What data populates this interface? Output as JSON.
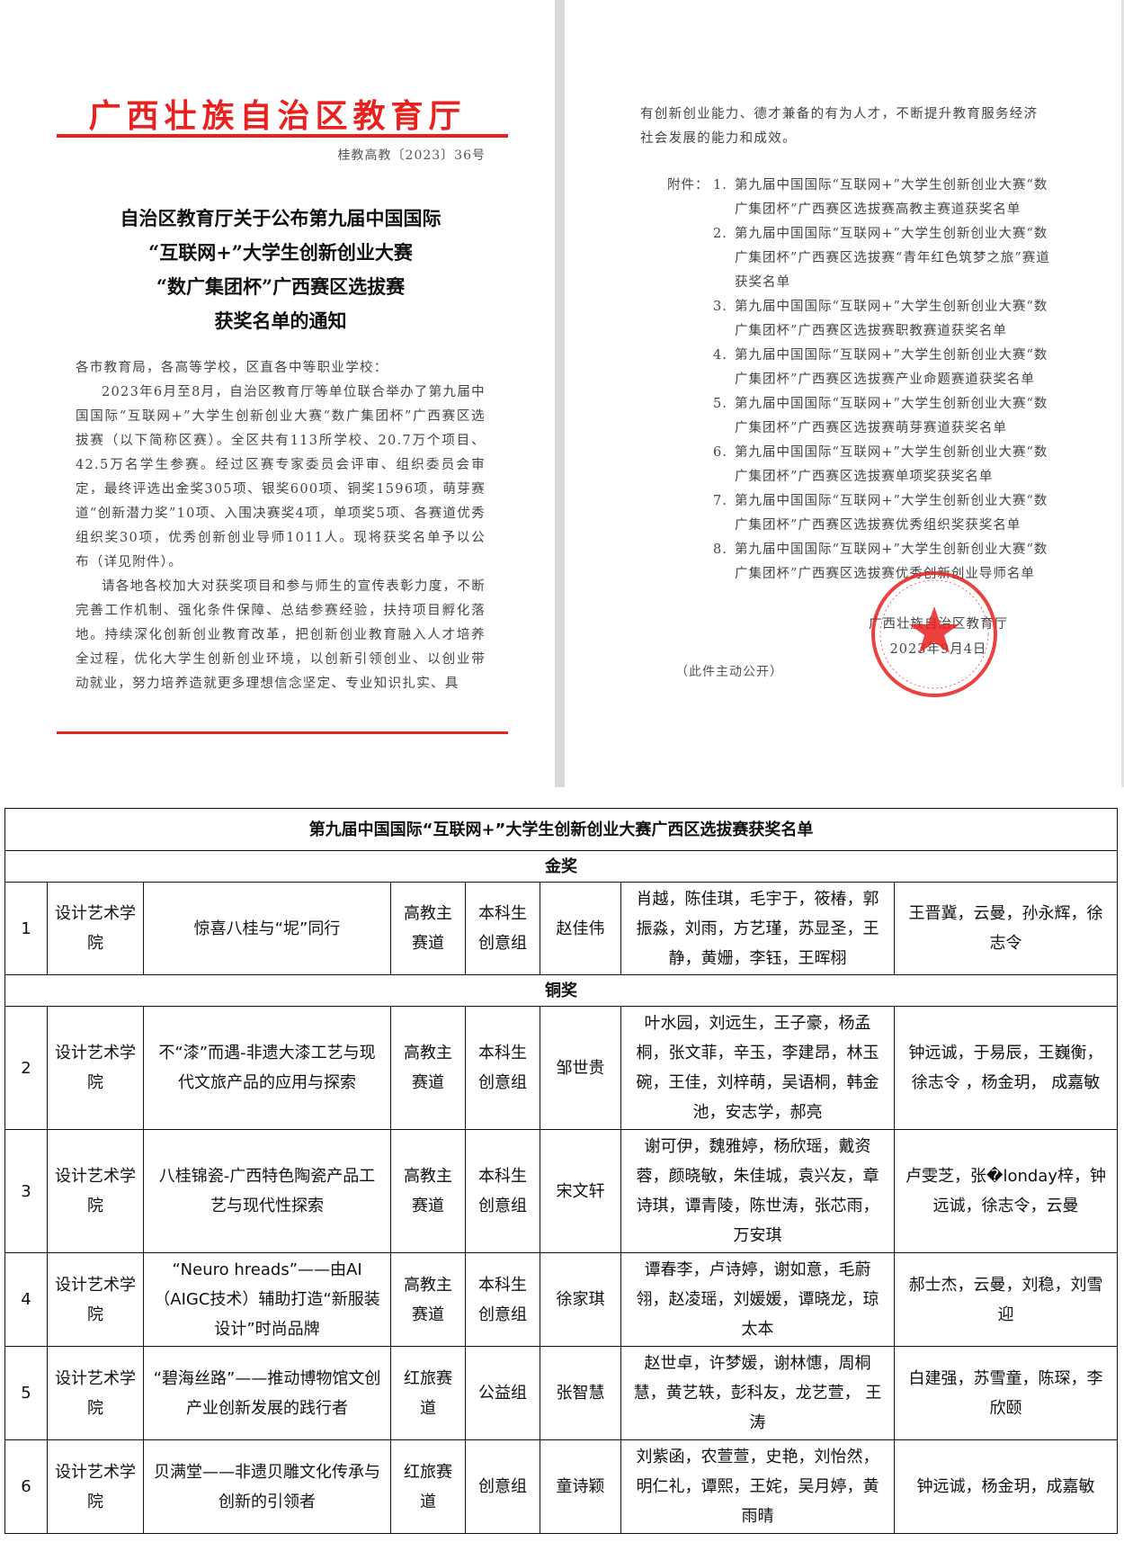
{
  "notice": {
    "issuer": "广西壮族自治区教育厅",
    "doc_number": "桂教高教〔2023〕36号",
    "title_lines": [
      "自治区教育厅关于公布第九届中国国际",
      "“互联网+”大学生创新创业大赛",
      "“数广集团杯”广西赛区选拔赛",
      "获奖名单的通知"
    ],
    "salutation": "各市教育局，各高等学校，区直各中等职业学校：",
    "paragraph1": "2023年6月至8月，自治区教育厅等单位联合举办了第九届中国国际“互联网+”大学生创新创业大赛“数广集团杯”广西赛区选拔赛（以下简称区赛）。全区共有113所学校、20.7万个项目、42.5万名学生参赛。经过区赛专家委员会评审、组织委员会审定，最终评选出金奖305项、银奖600项、铜奖1596项，萌芽赛道“创新潜力奖”10项、入围决赛奖4项，单项奖5项、各赛道优秀组织奖30项，优秀创新创业导师1011人。现将获奖名单予以公布（详见附件）。",
    "paragraph2": "请各地各校加大对获奖项目和参与师生的宣传表彰力度，不断完善工作机制、强化条件保障、总结参赛经验，扶持项目孵化落地。持续深化创新创业教育改革，把创新创业教育融入人才培养全过程，优化大学生创新创业环境，以创新引领创业、以创业带动就业，努力培养造就更多理想信念坚定、专业知识扎实、具",
    "paragraph2_cont": "有创新创业能力、德才兼备的有为人才，不断提升教育服务经济社会发展的能力和成效。",
    "attachments_label": "附件：",
    "attachments": [
      {
        "num": "1.",
        "text": "第九届中国国际“互联网+”大学生创新创业大赛“数广集团杯”广西赛区选拔赛高教主赛道获奖名单"
      },
      {
        "num": "2.",
        "text": "第九届中国国际“互联网+”大学生创新创业大赛“数广集团杯”广西赛区选拔赛“青年红色筑梦之旅”赛道获奖名单"
      },
      {
        "num": "3.",
        "text": "第九届中国国际“互联网+”大学生创新创业大赛“数广集团杯”广西赛区选拔赛职教赛道获奖名单"
      },
      {
        "num": "4.",
        "text": "第九届中国国际“互联网+”大学生创新创业大赛“数广集团杯”广西赛区选拔赛产业命题赛道获奖名单"
      },
      {
        "num": "5.",
        "text": "第九届中国国际“互联网+”大学生创新创业大赛“数广集团杯”广西赛区选拔赛萌芽赛道获奖名单"
      },
      {
        "num": "6.",
        "text": "第九届中国国际“互联网+”大学生创新创业大赛“数广集团杯”广西赛区选拔赛单项奖获奖名单"
      },
      {
        "num": "7.",
        "text": "第九届中国国际“互联网+”大学生创新创业大赛“数广集团杯”广西赛区选拔赛优秀组织奖获奖名单"
      },
      {
        "num": "8.",
        "text": "第九届中国国际“互联网+”大学生创新创业大赛“数广集团杯”广西赛区选拔赛优秀创新创业导师名单"
      }
    ],
    "signature": "广西壮族自治区教育厅",
    "date": "2023年9月4日",
    "disclosure": "（此件主动公开）",
    "seal_text": "广西壮族自治区教育厅",
    "accent_color": "#e8201e"
  },
  "table": {
    "title": "第九届中国国际“互联网+”大学生创新创业大赛广西区选拔赛获奖名单",
    "gold_label": "金奖",
    "bronze_label": "铜奖",
    "gold_rows": [
      {
        "no": "1",
        "college": "设计艺术学院",
        "project": "惊喜八桂与“坭”同行",
        "track": "高教主赛道",
        "group": "本科生创意组",
        "leader": "赵佳伟",
        "members": "肖越，陈佳琪，毛宇于，筱椿，郭振淼，刘雨，方艺瑾，苏显圣，王静，黄姗，李钰，王晖栩",
        "mentors": "王晋冀，云曼，孙永辉，徐志令"
      }
    ],
    "bronze_rows": [
      {
        "no": "2",
        "college": "设计艺术学院",
        "project": "不“漆”而遇-非遗大漆工艺与现代文旅产品的应用与探索",
        "track": "高教主赛道",
        "group": "本科生创意组",
        "leader": "邹世贵",
        "members": "叶水园，刘远生，王子豪，杨孟桐，张文菲，辛玉，李建昂，林玉碗，王佳，刘梓萌，吴语桐，韩金池，安志学，郝亮",
        "mentors": "钟远诚，于易辰，王巍衡，徐志令 ，杨金玥， 成嘉敏"
      },
      {
        "no": "3",
        "college": "设计艺术学院",
        "project": "八桂锦瓷-广西特色陶瓷产品工艺与现代性探索",
        "track": "高教主赛道",
        "group": "本科生创意组",
        "leader": "宋文轩",
        "members": "谢可伊，魏雅婷，杨欣瑶，戴资蓉，颜晓敏，朱佳城，袁兴友，章诗琪，谭青陵，陈世涛，张芯雨，万安琪",
        "mentors": "卢雯芝，张�londay梓，钟远诚，徐志令，云曼"
      },
      {
        "no": "4",
        "college": "设计艺术学院",
        "project": "“Neuro hreads”——由AI（AIGC技术）辅助打造“新服装设计”时尚品牌",
        "track": "高教主赛道",
        "group": "本科生创意组",
        "leader": "徐家琪",
        "members": "谭春李，卢诗婷，谢如意，毛蔚翎，赵凌瑶，刘媛媛，谭晓龙，琼太本",
        "mentors": "郝士杰，云曼，刘稳，刘雪迎"
      },
      {
        "no": "5",
        "college": "设计艺术学院",
        "project": "“碧海丝路”——推动博物馆文创产业创新发展的践行者",
        "track": "红旅赛道",
        "group": "公益组",
        "leader": "张智慧",
        "members": "赵世卓，许梦媛，谢林憓，周桐慧，黄艺轶，彭科友，龙艺萱， 王涛",
        "mentors": "白建强，苏雪童，陈琛，李欣颐"
      },
      {
        "no": "6",
        "college": "设计艺术学院",
        "project": "贝满堂——非遗贝雕文化传承与创新的引领者",
        "track": "红旅赛道",
        "group": "创意组",
        "leader": "童诗颖",
        "members": "刘紫函，农萱萱，史艳，刘怡然，明仁礼，谭熙，王姹，吴月婷，黄雨晴",
        "mentors": "钟远诚，杨金玥，成嘉敏"
      }
    ]
  }
}
